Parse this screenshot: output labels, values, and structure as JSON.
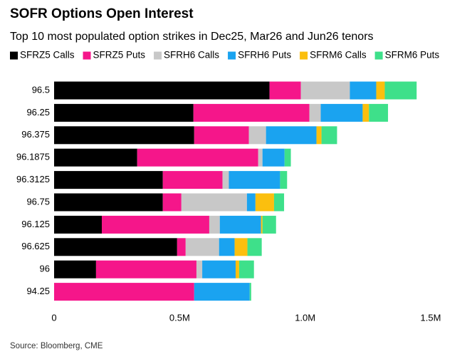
{
  "chart_data": {
    "type": "stacked-barh",
    "title": "SOFR Options Open Interest",
    "subtitle": "Top 10 most populated option strikes in Dec25, Mar26 and Jun26 tenors",
    "source": "Source: Bloomberg, CME",
    "categories": [
      "96.5",
      "96.25",
      "96.375",
      "96.1875",
      "96.3125",
      "96.75",
      "96.125",
      "96.625",
      "96",
      "94.25"
    ],
    "series": [
      {
        "name": "SFRZ5 Calls",
        "color": "#000000",
        "values": [
          858000,
          555000,
          558000,
          331000,
          433000,
          433000,
          190000,
          490000,
          167000,
          0
        ]
      },
      {
        "name": "SFRZ5 Puts",
        "color": "#f5168a",
        "values": [
          125000,
          462000,
          218000,
          482000,
          238000,
          74000,
          428000,
          34000,
          400000,
          558000
        ]
      },
      {
        "name": "SFRH6 Calls",
        "color": "#c8c8c8",
        "values": [
          195000,
          45000,
          68000,
          17000,
          25000,
          261000,
          42000,
          133000,
          23000,
          0
        ]
      },
      {
        "name": "SFRH6 Puts",
        "color": "#1aa3f0",
        "values": [
          105000,
          167000,
          201000,
          88000,
          204000,
          34000,
          164000,
          62000,
          133000,
          221000
        ]
      },
      {
        "name": "SFRM6 Calls",
        "color": "#fbbf0e",
        "values": [
          34000,
          25000,
          20000,
          0,
          0,
          74000,
          6000,
          51000,
          14000,
          0
        ]
      },
      {
        "name": "SFRM6 Puts",
        "color": "#3ee08a",
        "values": [
          127000,
          76000,
          62000,
          25000,
          28000,
          40000,
          54000,
          57000,
          59000,
          6000
        ]
      }
    ],
    "xlim": [
      0,
      1500000
    ],
    "xticks": [
      0,
      {
        "value": 500000,
        "label": "0.5M"
      },
      {
        "value": 1000000,
        "label": "1.0M"
      },
      {
        "value": 1500000,
        "label": "1.5M"
      }
    ]
  }
}
